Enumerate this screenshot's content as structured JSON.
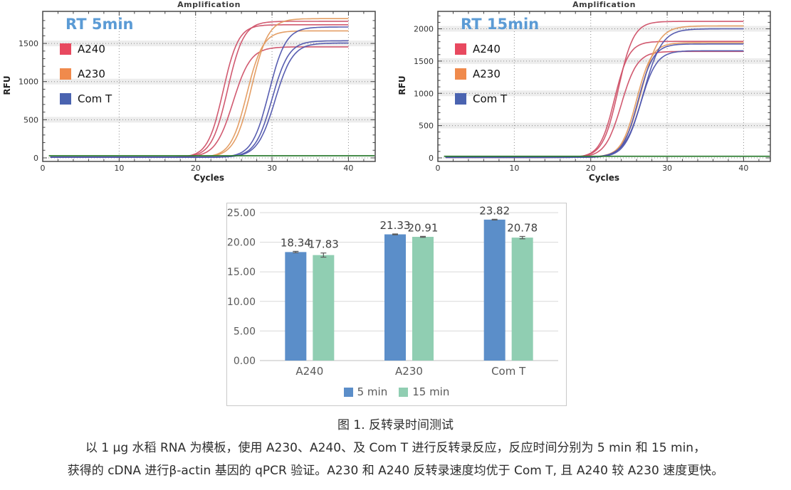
{
  "caption": {
    "title": "图 1. 反转录时间测试",
    "line2": "以 1 μg 水稻 RNA 为模板，使用 A230、A240、及 Com T 进行反转录反应，反应时间分别为 5 min 和 15 min，",
    "line3": "获得的 cDNA 进行β-actin 基因的 qPCR 验证。A230 和 A240 反转录速度均优于 Com T, 且 A240 较 A230 速度更快。"
  },
  "chart_data": [
    {
      "type": "line",
      "title": "Amplification",
      "panel_label": "RT 5min",
      "panel_label_color": "#5b9bd5",
      "xlabel": "Cycles",
      "ylabel": "RFU",
      "xlim": [
        0,
        43.5
      ],
      "ylim": [
        0,
        1920
      ],
      "xticks": [
        0,
        10,
        20,
        30,
        40
      ],
      "yticks": [
        0,
        500,
        1000,
        1500
      ],
      "x_minor_step": 2,
      "y_minor_step": 100,
      "grid": "dotted",
      "legend": [
        {
          "label": "A240",
          "color": "#e8495f"
        },
        {
          "label": "A230",
          "color": "#f08a4c"
        },
        {
          "label": "Com T",
          "color": "#4a63b0"
        }
      ],
      "threshold": {
        "y": 28,
        "color": "#2e7d32"
      },
      "series": [
        {
          "name": "A240-1",
          "color": "#cf5168",
          "plateau": 1790,
          "midpoint": 24.2,
          "slope": 1.05
        },
        {
          "name": "A240-2",
          "color": "#cf5168",
          "plateau": 1745,
          "midpoint": 23.6,
          "slope": 1.0
        },
        {
          "name": "A240-3",
          "color": "#cf5168",
          "plateau": 1455,
          "midpoint": 24.9,
          "slope": 1.15
        },
        {
          "name": "A230-1",
          "color": "#e39a5e",
          "plateau": 1825,
          "midpoint": 27.3,
          "slope": 1.1
        },
        {
          "name": "A230-2",
          "color": "#e39a5e",
          "plateau": 1665,
          "midpoint": 26.7,
          "slope": 1.05
        },
        {
          "name": "ComT-1",
          "color": "#4f55ad",
          "plateau": 1715,
          "midpoint": 29.6,
          "slope": 1.1
        },
        {
          "name": "ComT-2",
          "color": "#4f55ad",
          "plateau": 1535,
          "midpoint": 30.0,
          "slope": 1.1
        },
        {
          "name": "ComT-3",
          "color": "#4f55ad",
          "plateau": 1505,
          "midpoint": 30.4,
          "slope": 1.15
        }
      ]
    },
    {
      "type": "line",
      "title": "Amplification",
      "panel_label": "RT 15min",
      "panel_label_color": "#5b9bd5",
      "xlabel": "Cycles",
      "ylabel": "RFU",
      "xlim": [
        0,
        43.5
      ],
      "ylim": [
        0,
        2270
      ],
      "xticks": [
        0,
        10,
        20,
        30,
        40
      ],
      "yticks": [
        0,
        500,
        1000,
        1500,
        2000
      ],
      "x_minor_step": 2,
      "y_minor_step": 100,
      "grid": "dotted",
      "legend": [
        {
          "label": "A240",
          "color": "#e8495f"
        },
        {
          "label": "A230",
          "color": "#f08a4c"
        },
        {
          "label": "Com T",
          "color": "#4a63b0"
        }
      ],
      "threshold": {
        "y": 25,
        "color": "#2e7d32"
      },
      "series": [
        {
          "name": "A240-1",
          "color": "#cf5168",
          "plateau": 2115,
          "midpoint": 23.6,
          "slope": 1.0
        },
        {
          "name": "A240-2",
          "color": "#cf5168",
          "plateau": 1805,
          "midpoint": 23.1,
          "slope": 0.95
        },
        {
          "name": "A240-3",
          "color": "#cf5168",
          "plateau": 1650,
          "midpoint": 24.0,
          "slope": 1.05
        },
        {
          "name": "A230-1",
          "color": "#e39a5e",
          "plateau": 2045,
          "midpoint": 26.6,
          "slope": 1.15
        },
        {
          "name": "A230-2",
          "color": "#e39a5e",
          "plateau": 1785,
          "midpoint": 26.0,
          "slope": 1.0
        },
        {
          "name": "ComT-1",
          "color": "#4f55ad",
          "plateau": 2000,
          "midpoint": 26.9,
          "slope": 1.2
        },
        {
          "name": "ComT-2",
          "color": "#4f55ad",
          "plateau": 1765,
          "midpoint": 26.2,
          "slope": 1.0
        },
        {
          "name": "ComT-3",
          "color": "#4f55ad",
          "plateau": 1660,
          "midpoint": 26.5,
          "slope": 1.05
        }
      ]
    },
    {
      "type": "bar",
      "categories": [
        "A240",
        "A230",
        "Com T"
      ],
      "series": [
        {
          "name": "5 min",
          "color": "#5b8ec9",
          "values": [
            18.34,
            21.33,
            23.82
          ],
          "errors": [
            0.12,
            0.07,
            0.06
          ]
        },
        {
          "name": "15 min",
          "color": "#90ceb2",
          "values": [
            17.83,
            20.91,
            20.78
          ],
          "errors": [
            0.35,
            0.08,
            0.2
          ]
        }
      ],
      "yticks": [
        0,
        5,
        10,
        15,
        20,
        25
      ],
      "ylim": [
        0,
        26.5
      ],
      "tick_decimals": 2,
      "data_labels": true,
      "grid": "horizontal",
      "legend_position": "bottom"
    }
  ]
}
